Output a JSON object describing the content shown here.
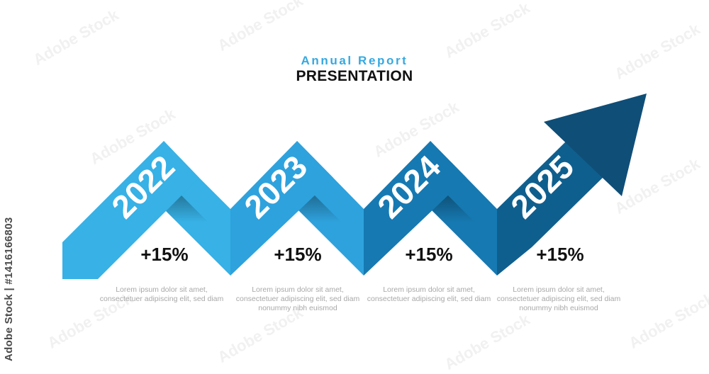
{
  "header": {
    "subtitle": "Annual Report",
    "title": "PRESENTATION"
  },
  "steps": [
    {
      "year": "2022",
      "change": "+15%",
      "desc": [
        "Lorem ipsum dolor sit amet,",
        "consectetuer adipiscing elit, sed diam"
      ]
    },
    {
      "year": "2023",
      "change": "+15%",
      "desc": [
        "Lorem ipsum dolor sit amet,",
        "consectetuer adipiscing elit, sed diam",
        "nonummy nibh euismod"
      ]
    },
    {
      "year": "2024",
      "change": "+15%",
      "desc": [
        "Lorem ipsum dolor sit amet,",
        "consectetuer adipiscing elit, sed diam"
      ]
    },
    {
      "year": "2025",
      "change": "+15%",
      "desc": [
        "Lorem ipsum dolor sit amet,",
        "consectetuer adipiscing elit, sed diam",
        "nonummy nibh euismod"
      ]
    }
  ],
  "colors": {
    "band_1": "#37b1e6",
    "band_2": "#2ea2dd",
    "band_3": "#1679b2",
    "band_4": "#0f5f8e",
    "arrow_head": "#0f4e77",
    "shadow": "#0b3c5e"
  },
  "credit": "Adobe Stock | #1416166803",
  "watermark": "Adobe Stock"
}
